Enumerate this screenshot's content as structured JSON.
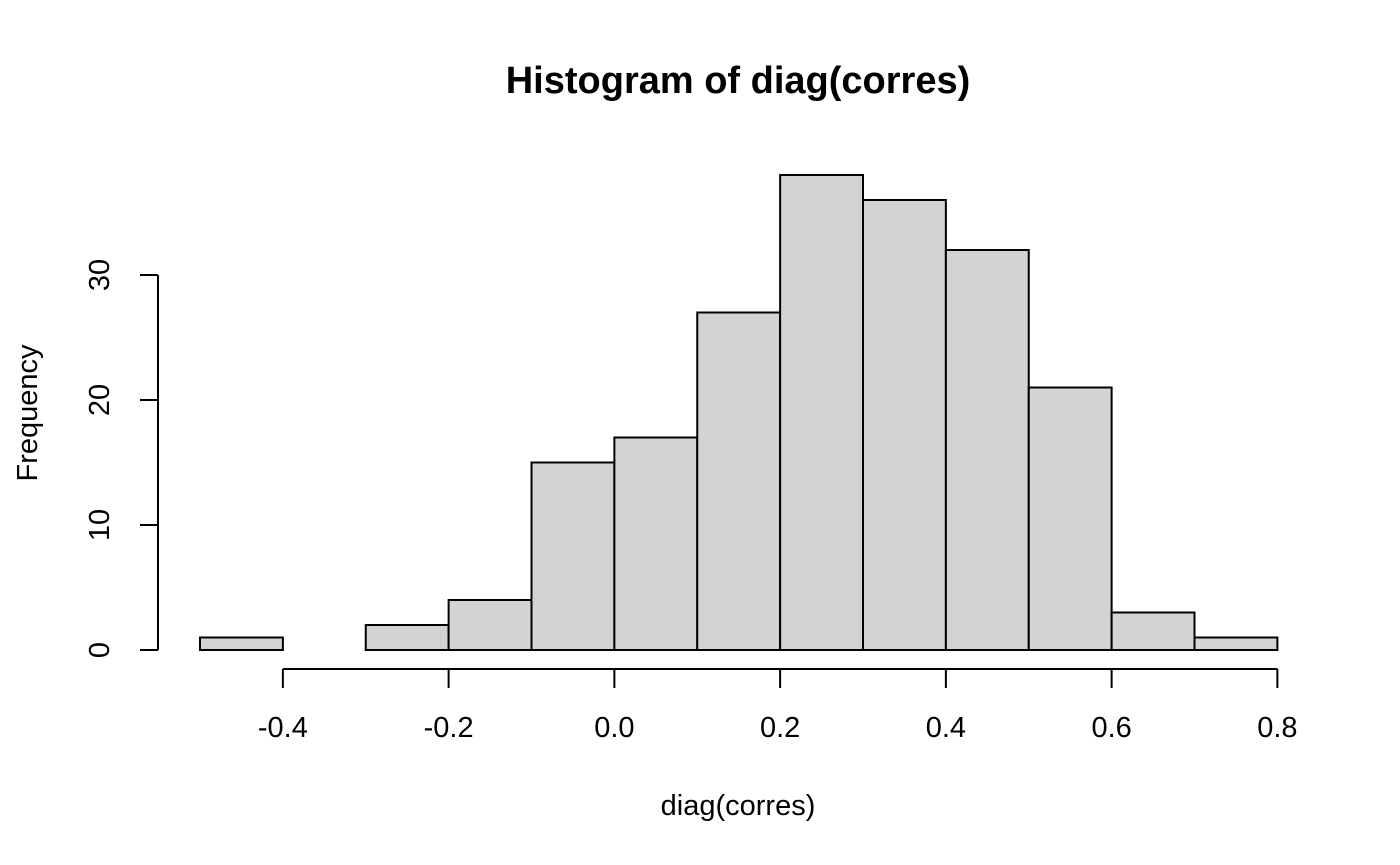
{
  "chart_data": {
    "type": "bar",
    "title": "Histogram of diag(corres)",
    "xlabel": "diag(corres)",
    "ylabel": "Frequency",
    "bins": [
      {
        "start": -0.5,
        "end": -0.4,
        "count": 1
      },
      {
        "start": -0.4,
        "end": -0.3,
        "count": 0
      },
      {
        "start": -0.3,
        "end": -0.2,
        "count": 2
      },
      {
        "start": -0.2,
        "end": -0.1,
        "count": 4
      },
      {
        "start": -0.1,
        "end": 0.0,
        "count": 15
      },
      {
        "start": 0.0,
        "end": 0.1,
        "count": 17
      },
      {
        "start": 0.1,
        "end": 0.2,
        "count": 27
      },
      {
        "start": 0.2,
        "end": 0.3,
        "count": 38
      },
      {
        "start": 0.3,
        "end": 0.4,
        "count": 36
      },
      {
        "start": 0.4,
        "end": 0.5,
        "count": 32
      },
      {
        "start": 0.5,
        "end": 0.6,
        "count": 21
      },
      {
        "start": 0.6,
        "end": 0.7,
        "count": 3
      },
      {
        "start": 0.7,
        "end": 0.8,
        "count": 1
      }
    ],
    "x_ticks": [
      -0.4,
      -0.2,
      0.0,
      0.2,
      0.4,
      0.6,
      0.8
    ],
    "x_tick_labels": [
      "-0.4",
      "-0.2",
      "0.0",
      "0.2",
      "0.4",
      "0.6",
      "0.8"
    ],
    "y_ticks": [
      0,
      10,
      20,
      30
    ],
    "y_tick_labels": [
      "0",
      "10",
      "20",
      "30"
    ],
    "xlim": [
      -0.5,
      0.8
    ],
    "ylim": [
      0,
      38
    ],
    "bar_fill": "#d3d3d3",
    "bar_stroke": "#000000",
    "grid": false,
    "legend": "none"
  }
}
